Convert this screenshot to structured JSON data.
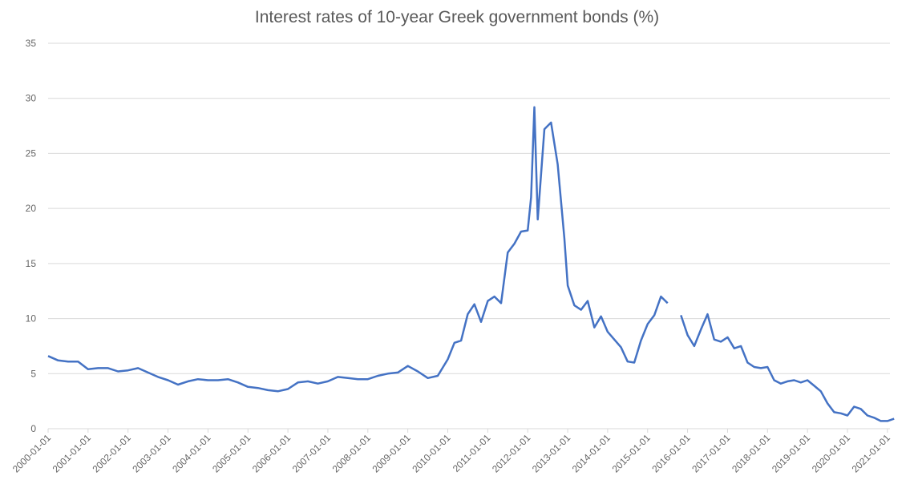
{
  "chart_data": {
    "type": "line",
    "title": "Interest rates of 10-year Greek government bonds (%)",
    "xlabel": "",
    "ylabel": "",
    "ylim": [
      0,
      35
    ],
    "yticks": [
      0,
      5,
      10,
      15,
      20,
      25,
      30,
      35
    ],
    "grid": "horizontal",
    "legend": "none",
    "line_color": "#4472C4",
    "x_tick_labels": [
      "2000-01-01",
      "2001-01-01",
      "2002-01-01",
      "2003-01-01",
      "2004-01-01",
      "2005-01-01",
      "2006-01-01",
      "2007-01-01",
      "2008-01-01",
      "2009-01-01",
      "2010-01-01",
      "2011-01-01",
      "2012-01-01",
      "2013-01-01",
      "2014-01-01",
      "2015-01-01",
      "2016-01-01",
      "2017-01-01",
      "2018-01-01",
      "2019-01-01",
      "2020-01-01",
      "2021-01-01"
    ],
    "series": [
      {
        "name": "10-year Greek government bond yield (%)",
        "frequency": "quarterly-approx",
        "x": [
          "2000-01",
          "2000-04",
          "2000-07",
          "2000-10",
          "2001-01",
          "2001-04",
          "2001-07",
          "2001-10",
          "2002-01",
          "2002-04",
          "2002-07",
          "2002-10",
          "2003-01",
          "2003-04",
          "2003-07",
          "2003-10",
          "2004-01",
          "2004-04",
          "2004-07",
          "2004-10",
          "2005-01",
          "2005-04",
          "2005-07",
          "2005-10",
          "2006-01",
          "2006-04",
          "2006-07",
          "2006-10",
          "2007-01",
          "2007-04",
          "2007-07",
          "2007-10",
          "2008-01",
          "2008-04",
          "2008-07",
          "2008-10",
          "2009-01",
          "2009-04",
          "2009-07",
          "2009-10",
          "2010-01",
          "2010-03",
          "2010-05",
          "2010-07",
          "2010-09",
          "2010-11",
          "2011-01",
          "2011-03",
          "2011-05",
          "2011-07",
          "2011-09",
          "2011-11",
          "2012-01",
          "2012-02",
          "2012-03",
          "2012-04",
          "2012-06",
          "2012-08",
          "2012-10",
          "2012-12",
          "2013-01",
          "2013-03",
          "2013-05",
          "2013-07",
          "2013-09",
          "2013-11",
          "2014-01",
          "2014-03",
          "2014-05",
          "2014-07",
          "2014-09",
          "2014-11",
          "2015-01",
          "2015-03",
          "2015-05",
          "2015-07",
          "2015-09",
          "2015-11",
          "2016-01",
          "2016-03",
          "2016-05",
          "2016-07",
          "2016-09",
          "2016-11",
          "2017-01",
          "2017-03",
          "2017-05",
          "2017-07",
          "2017-09",
          "2017-11",
          "2018-01",
          "2018-03",
          "2018-05",
          "2018-07",
          "2018-09",
          "2018-11",
          "2019-01",
          "2019-03",
          "2019-05",
          "2019-07",
          "2019-09",
          "2019-11",
          "2020-01",
          "2020-03",
          "2020-05",
          "2020-07",
          "2020-09",
          "2020-11",
          "2021-01",
          "2021-03"
        ],
        "values": [
          6.6,
          6.2,
          6.1,
          6.1,
          5.4,
          5.5,
          5.5,
          5.2,
          5.3,
          5.5,
          5.1,
          4.7,
          4.4,
          4.0,
          4.3,
          4.5,
          4.4,
          4.4,
          4.5,
          4.2,
          3.8,
          3.7,
          3.5,
          3.4,
          3.6,
          4.2,
          4.3,
          4.1,
          4.3,
          4.7,
          4.6,
          4.5,
          4.5,
          4.8,
          5.0,
          5.1,
          5.7,
          5.2,
          4.6,
          4.8,
          6.3,
          7.8,
          8.0,
          10.4,
          11.3,
          9.7,
          11.6,
          12.0,
          11.4,
          16.0,
          16.8,
          17.9,
          18.0,
          21.0,
          29.2,
          19.0,
          27.2,
          27.8,
          24.0,
          17.3,
          13.0,
          11.2,
          10.8,
          11.6,
          9.2,
          10.2,
          8.8,
          8.1,
          7.4,
          6.1,
          6.0,
          8.0,
          9.5,
          10.3,
          12.0,
          11.4,
          null,
          10.3,
          8.5,
          7.5,
          9.0,
          10.4,
          8.1,
          7.9,
          8.3,
          7.3,
          7.5,
          6.0,
          5.6,
          5.5,
          5.6,
          4.4,
          4.1,
          4.3,
          4.4,
          4.2,
          4.4,
          3.9,
          3.4,
          2.3,
          1.5,
          1.4,
          1.2,
          2.0,
          1.8,
          1.2,
          1.0,
          0.7,
          0.7,
          0.9
        ]
      }
    ]
  }
}
